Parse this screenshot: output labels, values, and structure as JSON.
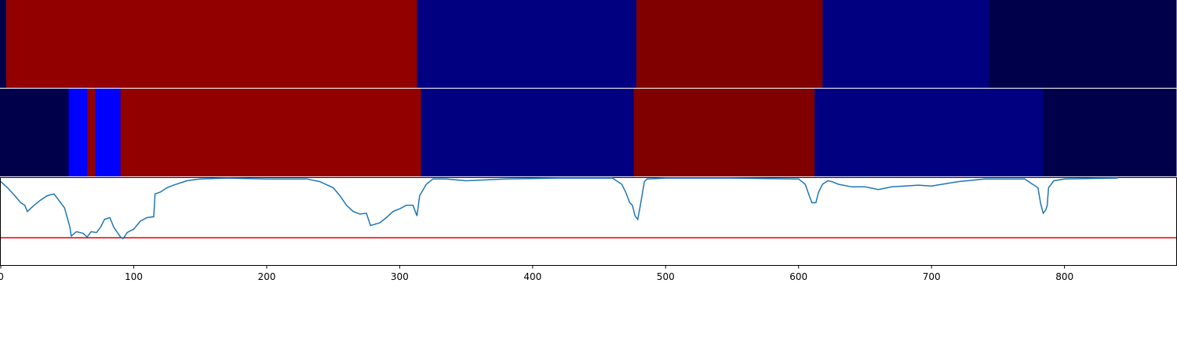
{
  "chart_data": [
    {
      "type": "segments",
      "xlim": [
        0,
        884
      ],
      "starts": [
        0,
        4,
        313,
        478,
        618,
        743
      ],
      "ends": [
        4,
        313,
        478,
        618,
        743,
        884
      ],
      "colors": [
        "#00004a",
        "#920000",
        "#000080",
        "#800000",
        "#000080",
        "#00004a"
      ]
    },
    {
      "type": "segments",
      "xlim": [
        0,
        884
      ],
      "starts": [
        0,
        51,
        65,
        71,
        90,
        316,
        476,
        612,
        784
      ],
      "ends": [
        51,
        65,
        71,
        90,
        316,
        476,
        612,
        784,
        884
      ],
      "colors": [
        "#00004a",
        "#0000ff",
        "#920000",
        "#0000ff",
        "#920000",
        "#000080",
        "#800000",
        "#000080",
        "#00004a"
      ]
    },
    {
      "type": "line",
      "xlim": [
        0,
        884
      ],
      "ylim": [
        0,
        1
      ],
      "color": "#1f77b4",
      "threshold": 0.31,
      "threshold_color": "#e00000",
      "xticks": [
        0,
        100,
        200,
        300,
        400,
        500,
        600,
        700,
        800
      ],
      "x": [
        0,
        5,
        10,
        15,
        18,
        20,
        25,
        30,
        35,
        40,
        45,
        48,
        50,
        52,
        53,
        57,
        62,
        65,
        68,
        72,
        75,
        78,
        82,
        85,
        90,
        92,
        95,
        100,
        105,
        110,
        115,
        116,
        120,
        125,
        130,
        140,
        150,
        170,
        200,
        230,
        240,
        250,
        255,
        260,
        265,
        270,
        275,
        278,
        285,
        290,
        295,
        300,
        305,
        310,
        313,
        315,
        320,
        325,
        335,
        350,
        380,
        420,
        460,
        467,
        470,
        473,
        475,
        477,
        479,
        481,
        484,
        486,
        500,
        550,
        600,
        605,
        608,
        610,
        613,
        615,
        618,
        622,
        625,
        630,
        640,
        650,
        660,
        670,
        690,
        700,
        720,
        740,
        770,
        776,
        780,
        782,
        784,
        786,
        787,
        788,
        792,
        800,
        840
      ],
      "values": [
        0.95,
        0.88,
        0.8,
        0.71,
        0.68,
        0.61,
        0.68,
        0.74,
        0.79,
        0.81,
        0.71,
        0.65,
        0.54,
        0.43,
        0.33,
        0.38,
        0.36,
        0.32,
        0.38,
        0.37,
        0.43,
        0.52,
        0.54,
        0.43,
        0.32,
        0.3,
        0.37,
        0.41,
        0.5,
        0.54,
        0.55,
        0.81,
        0.83,
        0.88,
        0.91,
        0.96,
        0.98,
        0.99,
        0.98,
        0.98,
        0.95,
        0.88,
        0.79,
        0.68,
        0.61,
        0.58,
        0.59,
        0.45,
        0.48,
        0.54,
        0.61,
        0.64,
        0.68,
        0.68,
        0.56,
        0.79,
        0.92,
        0.98,
        0.98,
        0.96,
        0.98,
        0.99,
        0.99,
        0.92,
        0.83,
        0.71,
        0.68,
        0.56,
        0.52,
        0.68,
        0.95,
        0.98,
        0.99,
        0.99,
        0.98,
        0.92,
        0.79,
        0.71,
        0.71,
        0.83,
        0.92,
        0.96,
        0.95,
        0.92,
        0.89,
        0.89,
        0.86,
        0.89,
        0.91,
        0.9,
        0.95,
        0.98,
        0.98,
        0.92,
        0.88,
        0.7,
        0.59,
        0.63,
        0.68,
        0.88,
        0.96,
        0.98,
        0.99
      ]
    }
  ]
}
